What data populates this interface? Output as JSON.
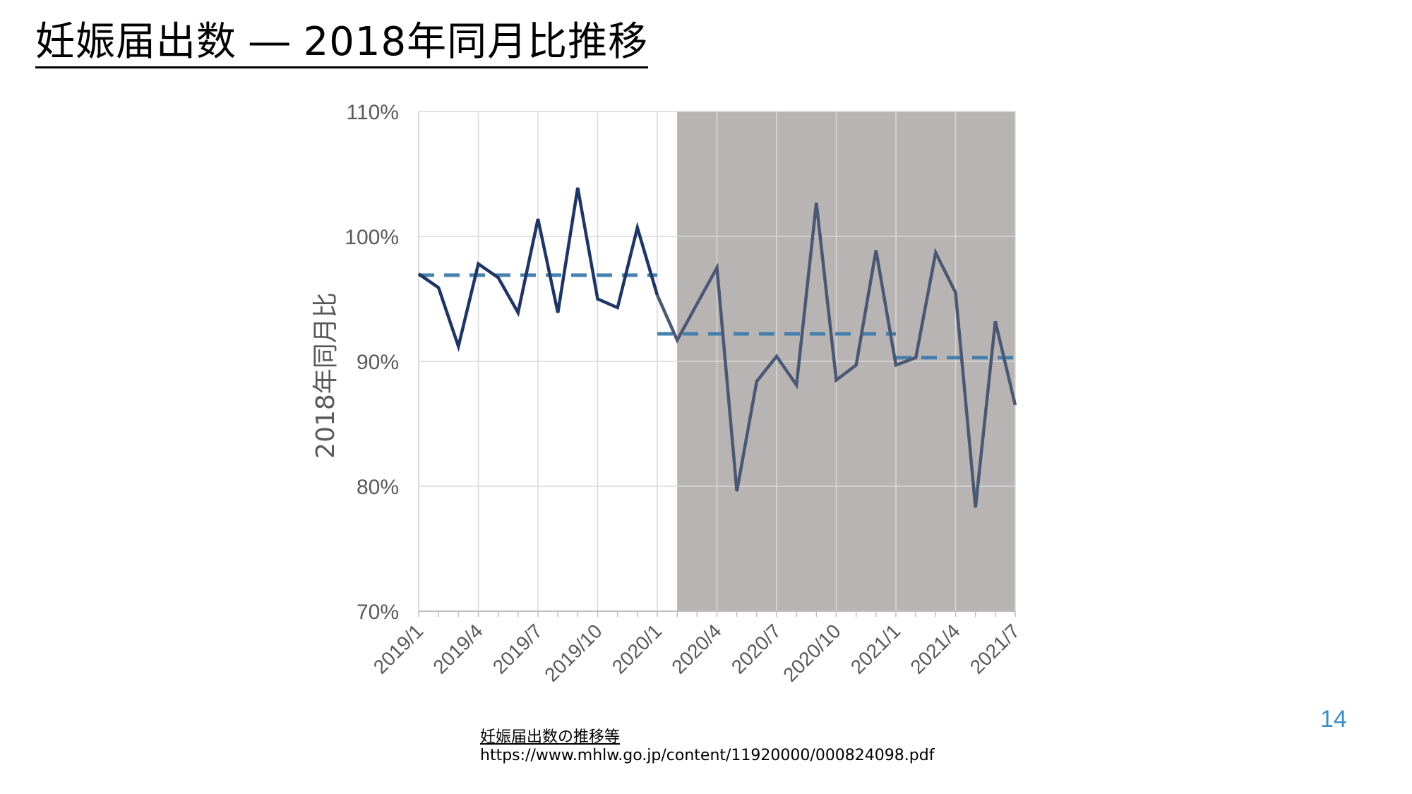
{
  "slide": {
    "title": "妊娠届出数 ― 2018年同月比推移",
    "source_title": "妊娠届出数の推移等",
    "source_url": "https://www.mhlw.go.jp/content/11920000/000824098.pdf",
    "page_number": "14"
  },
  "chart_data": {
    "type": "line",
    "title": "",
    "xlabel": "",
    "ylabel": "2018年同月比",
    "ylim": [
      0.7,
      1.1
    ],
    "y_ticks": [
      "70%",
      "80%",
      "90%",
      "100%",
      "110%"
    ],
    "x_tick_labels": [
      "2019/1",
      "2019/4",
      "2019/7",
      "2019/10",
      "2020/1",
      "2020/4",
      "2020/7",
      "2020/10",
      "2021/1",
      "2021/4",
      "2021/7"
    ],
    "x": [
      "2019/1",
      "2019/2",
      "2019/3",
      "2019/4",
      "2019/5",
      "2019/6",
      "2019/7",
      "2019/8",
      "2019/9",
      "2019/10",
      "2019/11",
      "2019/12",
      "2020/1",
      "2020/2",
      "2020/3",
      "2020/4",
      "2020/5",
      "2020/6",
      "2020/7",
      "2020/8",
      "2020/9",
      "2020/10",
      "2020/11",
      "2020/12",
      "2021/1",
      "2021/2",
      "2021/3",
      "2021/4",
      "2021/5",
      "2021/6",
      "2021/7"
    ],
    "series": [
      {
        "role": "monthly",
        "color": "#1f3564",
        "values": [
          0.97,
          0.959,
          0.912,
          0.978,
          0.967,
          0.939,
          1.014,
          0.939,
          1.039,
          0.95,
          0.943,
          1.007,
          0.953,
          0.917,
          0.946,
          0.975,
          0.796,
          0.884,
          0.904,
          0.881,
          1.027,
          0.885,
          0.897,
          0.989,
          0.897,
          0.903,
          0.987,
          0.955,
          0.783,
          0.932,
          0.865
        ]
      }
    ],
    "averages": [
      {
        "from": "2019/1",
        "to": "2020/1",
        "value": 0.969,
        "color": "#3e7cab"
      },
      {
        "from": "2020/1",
        "to": "2021/1",
        "value": 0.922,
        "color": "#3e7cab"
      },
      {
        "from": "2021/1",
        "to": "2021/7",
        "value": 0.903,
        "color": "#3e7cab"
      }
    ],
    "shaded_region": {
      "from": "2020/2",
      "to": "2021/7",
      "color": "#b8b4b4"
    },
    "grid": true,
    "legend": "none"
  }
}
